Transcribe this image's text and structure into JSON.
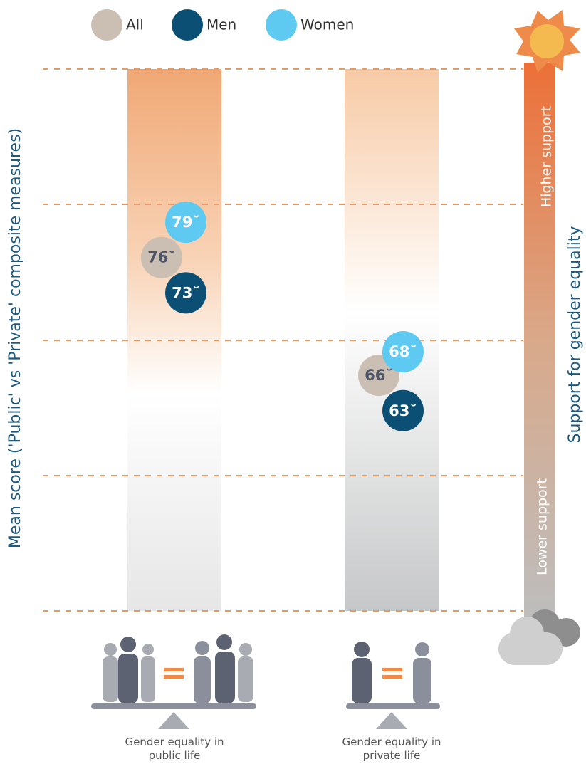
{
  "chart_data": {
    "type": "dot",
    "y_label": "Mean score ('Public' vs 'Private' composite measures)",
    "right_label": "Support for gender equality",
    "gauge_high": "Higher support",
    "gauge_low": "Lower support",
    "categories": [
      "Gender equality in public life",
      "Gender equality in private life"
    ],
    "series": [
      {
        "name": "All",
        "color": "#cbbfb3",
        "values": [
          76,
          66
        ],
        "value_labels": [
          "76˘",
          "66˘"
        ]
      },
      {
        "name": "Men",
        "color": "#0c4f74",
        "values": [
          73,
          63
        ],
        "value_labels": [
          "73˘",
          "63˘"
        ]
      },
      {
        "name": "Women",
        "color": "#5fcaf1",
        "values": [
          79,
          68
        ],
        "value_labels": [
          "79˘",
          "68˘"
        ]
      }
    ],
    "ylim": [
      46,
      92
    ]
  }
}
